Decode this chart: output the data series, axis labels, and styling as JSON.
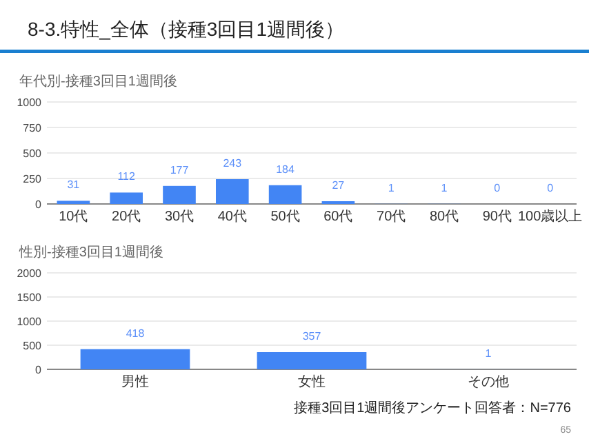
{
  "chart_data": [
    {
      "type": "bar",
      "title": "年代別-接種3回目1週間後",
      "categories": [
        "10代",
        "20代",
        "30代",
        "40代",
        "50代",
        "60代",
        "70代",
        "80代",
        "90代",
        "100歳以上"
      ],
      "values": [
        31,
        112,
        177,
        243,
        184,
        27,
        1,
        1,
        0,
        0
      ],
      "color": "#4285f4",
      "ylim": [
        0,
        1000
      ],
      "yticks": [
        0,
        250,
        500,
        750,
        1000
      ],
      "grid": "y",
      "data_labels": true,
      "annotations": [
        "8-3.特性_全体（接種3回目1週間後）"
      ]
    },
    {
      "type": "bar",
      "title": "性別-接種3回目1週間後",
      "categories": [
        "男性",
        "女性",
        "その他"
      ],
      "values": [
        418,
        357,
        1
      ],
      "color": "#4285f4",
      "ylim": [
        0,
        2000
      ],
      "yticks": [
        0,
        500,
        1000,
        1500,
        2000
      ],
      "grid": "y",
      "data_labels": true,
      "annotations": [
        "接種3回目1週間後アンケート回答者：N=776",
        "65"
      ]
    }
  ]
}
